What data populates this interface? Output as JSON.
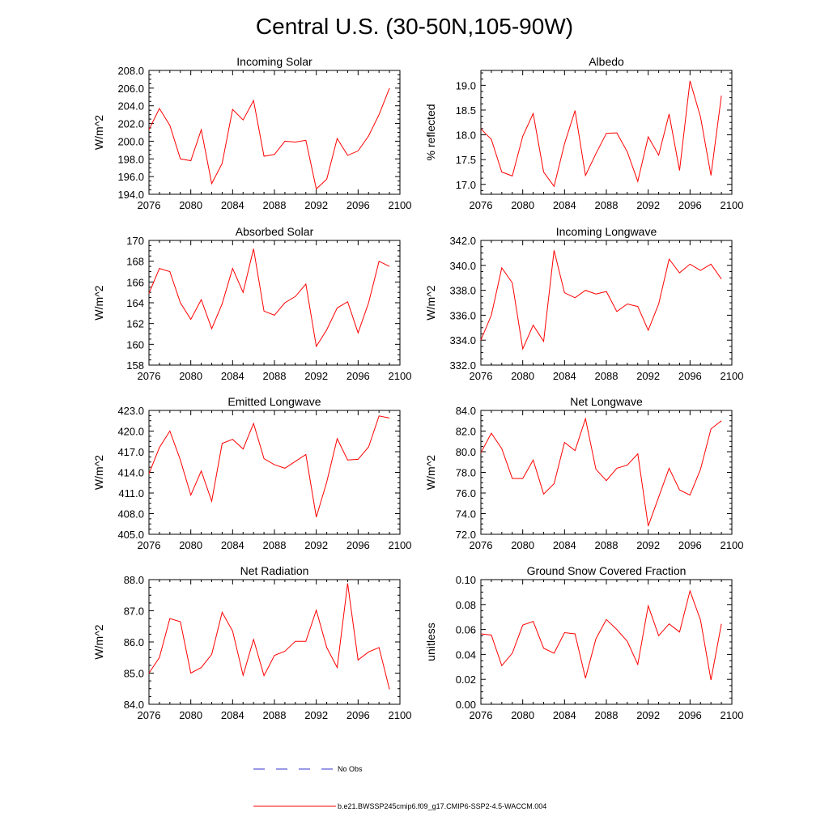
{
  "figure_title": "Central U.S. (30-50N,105-90W)",
  "legend": {
    "obs_label": "No Obs",
    "model_label": "b.e21.BWSSP245cmip6.f09_g17.CMIP6-SSP2-4.5-WACCM.004",
    "obs_color": "#3333cc",
    "model_color": "#ff0000"
  },
  "chart_data": [
    {
      "type": "line",
      "title": "Incoming Solar",
      "ylabel": "W/m^2",
      "xlabel": "",
      "xlim": [
        2076,
        2100
      ],
      "ylim": [
        194,
        208
      ],
      "x_ticks": [
        "2076",
        "2080",
        "2084",
        "2088",
        "2092",
        "2096",
        "2100"
      ],
      "y_ticks": [
        "194.0",
        "196.0",
        "198.0",
        "200.0",
        "202.0",
        "204.0",
        "206.0",
        "208.0"
      ],
      "series": [
        {
          "name": "b.e21.BWSSP245cmip6.f09_g17.CMIP6-SSP2-4.5-WACCM.004",
          "x": [
            2076,
            2077,
            2078,
            2079,
            2080,
            2081,
            2082,
            2083,
            2084,
            2085,
            2086,
            2087,
            2088,
            2089,
            2090,
            2091,
            2092,
            2093,
            2094,
            2095,
            2096,
            2097,
            2098,
            2099
          ],
          "values": [
            201.3,
            203.7,
            201.8,
            198.0,
            197.8,
            201.3,
            195.2,
            197.5,
            203.6,
            202.4,
            204.6,
            198.3,
            198.5,
            200.0,
            199.9,
            200.1,
            194.6,
            195.7,
            200.3,
            198.4,
            198.9,
            200.6,
            203.0,
            206.0
          ]
        }
      ]
    },
    {
      "type": "line",
      "title": "Albedo",
      "ylabel": "% reflected",
      "xlabel": "",
      "xlim": [
        2076,
        2100
      ],
      "ylim": [
        16.8,
        19.3
      ],
      "x_ticks": [
        "2076",
        "2080",
        "2084",
        "2088",
        "2092",
        "2096",
        "2100"
      ],
      "y_ticks": [
        "17.0",
        "17.5",
        "18.0",
        "18.5",
        "19.0"
      ],
      "series": [
        {
          "name": "b.e21.BWSSP245cmip6.f09_g17.CMIP6-SSP2-4.5-WACCM.004",
          "x": [
            2076,
            2077,
            2078,
            2079,
            2080,
            2081,
            2082,
            2083,
            2084,
            2085,
            2086,
            2087,
            2088,
            2089,
            2090,
            2091,
            2092,
            2093,
            2094,
            2095,
            2096,
            2097,
            2098,
            2099
          ],
          "values": [
            18.12,
            17.91,
            17.25,
            17.17,
            17.97,
            18.43,
            17.25,
            16.96,
            17.82,
            18.49,
            17.18,
            17.62,
            18.03,
            18.04,
            17.66,
            17.06,
            17.96,
            17.59,
            18.42,
            17.28,
            19.09,
            18.36,
            17.18,
            18.79
          ]
        }
      ]
    },
    {
      "type": "line",
      "title": "Absorbed Solar",
      "ylabel": "W/m^2",
      "xlabel": "",
      "xlim": [
        2076,
        2100
      ],
      "ylim": [
        158,
        170
      ],
      "x_ticks": [
        "2076",
        "2080",
        "2084",
        "2088",
        "2092",
        "2096",
        "2100"
      ],
      "y_ticks": [
        "158",
        "160",
        "162",
        "164",
        "166",
        "168",
        "170"
      ],
      "series": [
        {
          "name": "b.e21.BWSSP245cmip6.f09_g17.CMIP6-SSP2-4.5-WACCM.004",
          "x": [
            2076,
            2077,
            2078,
            2079,
            2080,
            2081,
            2082,
            2083,
            2084,
            2085,
            2086,
            2087,
            2088,
            2089,
            2090,
            2091,
            2092,
            2093,
            2094,
            2095,
            2096,
            2097,
            2098,
            2099
          ],
          "values": [
            164.9,
            167.3,
            167.0,
            164.0,
            162.4,
            164.3,
            161.5,
            163.9,
            167.3,
            165.0,
            169.2,
            163.2,
            162.8,
            164.0,
            164.6,
            165.8,
            159.8,
            161.4,
            163.5,
            164.1,
            161.1,
            164.0,
            168.0,
            167.5
          ]
        }
      ]
    },
    {
      "type": "line",
      "title": "Incoming Longwave",
      "ylabel": "W/m^2",
      "xlabel": "",
      "xlim": [
        2076,
        2100
      ],
      "ylim": [
        332,
        342
      ],
      "x_ticks": [
        "2076",
        "2080",
        "2084",
        "2088",
        "2092",
        "2096",
        "2100"
      ],
      "y_ticks": [
        "332.0",
        "334.0",
        "336.0",
        "338.0",
        "340.0",
        "342.0"
      ],
      "series": [
        {
          "name": "b.e21.BWSSP245cmip6.f09_g17.CMIP6-SSP2-4.5-WACCM.004",
          "x": [
            2076,
            2077,
            2078,
            2079,
            2080,
            2081,
            2082,
            2083,
            2084,
            2085,
            2086,
            2087,
            2088,
            2089,
            2090,
            2091,
            2092,
            2093,
            2094,
            2095,
            2096,
            2097,
            2098,
            2099
          ],
          "values": [
            334.0,
            336.0,
            339.8,
            338.6,
            333.3,
            335.2,
            333.9,
            341.2,
            337.8,
            337.4,
            338.0,
            337.7,
            337.9,
            336.3,
            336.9,
            336.7,
            334.8,
            336.9,
            340.5,
            339.4,
            340.1,
            339.6,
            340.1,
            338.9
          ]
        }
      ]
    },
    {
      "type": "line",
      "title": "Emitted Longwave",
      "ylabel": "W/m^2",
      "xlabel": "",
      "xlim": [
        2076,
        2100
      ],
      "ylim": [
        405,
        423
      ],
      "x_ticks": [
        "2076",
        "2080",
        "2084",
        "2088",
        "2092",
        "2096",
        "2100"
      ],
      "y_ticks": [
        "405.0",
        "408.0",
        "411.0",
        "414.0",
        "417.0",
        "420.0",
        "423.0"
      ],
      "series": [
        {
          "name": "b.e21.BWSSP245cmip6.f09_g17.CMIP6-SSP2-4.5-WACCM.004",
          "x": [
            2076,
            2077,
            2078,
            2079,
            2080,
            2081,
            2082,
            2083,
            2084,
            2085,
            2086,
            2087,
            2088,
            2089,
            2090,
            2091,
            2092,
            2093,
            2094,
            2095,
            2096,
            2097,
            2098,
            2099
          ],
          "values": [
            413.8,
            417.6,
            420.0,
            415.8,
            410.7,
            414.2,
            409.8,
            418.2,
            418.8,
            417.4,
            421.1,
            416.0,
            415.1,
            414.6,
            415.6,
            416.6,
            407.5,
            412.6,
            418.9,
            415.8,
            415.9,
            417.7,
            422.2,
            421.9
          ]
        }
      ]
    },
    {
      "type": "line",
      "title": "Net Longwave",
      "ylabel": "W/m^2",
      "xlabel": "",
      "xlim": [
        2076,
        2100
      ],
      "ylim": [
        72,
        84
      ],
      "x_ticks": [
        "2076",
        "2080",
        "2084",
        "2088",
        "2092",
        "2096",
        "2100"
      ],
      "y_ticks": [
        "72.0",
        "74.0",
        "76.0",
        "78.0",
        "80.0",
        "82.0",
        "84.0"
      ],
      "series": [
        {
          "name": "b.e21.BWSSP245cmip6.f09_g17.CMIP6-SSP2-4.5-WACCM.004",
          "x": [
            2076,
            2077,
            2078,
            2079,
            2080,
            2081,
            2082,
            2083,
            2084,
            2085,
            2086,
            2087,
            2088,
            2089,
            2090,
            2091,
            2092,
            2093,
            2094,
            2095,
            2096,
            2097,
            2098,
            2099
          ],
          "values": [
            79.9,
            81.8,
            80.3,
            77.4,
            77.4,
            79.2,
            75.9,
            76.9,
            80.9,
            80.1,
            83.2,
            78.3,
            77.2,
            78.4,
            78.7,
            79.8,
            72.8,
            75.6,
            78.4,
            76.3,
            75.8,
            78.3,
            82.2,
            83.0
          ]
        }
      ]
    },
    {
      "type": "line",
      "title": "Net Radiation",
      "ylabel": "W/m^2",
      "xlabel": "",
      "xlim": [
        2076,
        2100
      ],
      "ylim": [
        84,
        88
      ],
      "x_ticks": [
        "2076",
        "2080",
        "2084",
        "2088",
        "2092",
        "2096",
        "2100"
      ],
      "y_ticks": [
        "84.0",
        "85.0",
        "86.0",
        "87.0",
        "88.0"
      ],
      "series": [
        {
          "name": "b.e21.BWSSP245cmip6.f09_g17.CMIP6-SSP2-4.5-WACCM.004",
          "x": [
            2076,
            2077,
            2078,
            2079,
            2080,
            2081,
            2082,
            2083,
            2084,
            2085,
            2086,
            2087,
            2088,
            2089,
            2090,
            2091,
            2092,
            2093,
            2094,
            2095,
            2096,
            2097,
            2098,
            2099
          ],
          "values": [
            85.0,
            85.5,
            86.75,
            86.65,
            85.0,
            85.18,
            85.6,
            86.95,
            86.35,
            84.93,
            86.08,
            84.92,
            85.57,
            85.7,
            86.02,
            86.02,
            87.02,
            85.82,
            85.18,
            87.88,
            85.42,
            85.68,
            85.82,
            84.48
          ]
        }
      ]
    },
    {
      "type": "line",
      "title": "Ground Snow Covered Fraction",
      "ylabel": "unitless",
      "xlabel": "",
      "xlim": [
        2076,
        2100
      ],
      "ylim": [
        0.0,
        0.1
      ],
      "x_ticks": [
        "2076",
        "2080",
        "2084",
        "2088",
        "2092",
        "2096",
        "2100"
      ],
      "y_ticks": [
        "0.00",
        "0.02",
        "0.04",
        "0.06",
        "0.08",
        "0.10"
      ],
      "series": [
        {
          "name": "b.e21.BWSSP245cmip6.f09_g17.CMIP6-SSP2-4.5-WACCM.004",
          "x": [
            2076,
            2077,
            2078,
            2079,
            2080,
            2081,
            2082,
            2083,
            2084,
            2085,
            2086,
            2087,
            2088,
            2089,
            2090,
            2091,
            2092,
            2093,
            2094,
            2095,
            2096,
            2097,
            2098,
            2099
          ],
          "values": [
            0.0565,
            0.0555,
            0.031,
            0.041,
            0.0635,
            0.0665,
            0.045,
            0.041,
            0.0575,
            0.0565,
            0.021,
            0.0525,
            0.068,
            0.06,
            0.0505,
            0.032,
            0.079,
            0.055,
            0.0645,
            0.058,
            0.091,
            0.0675,
            0.0195,
            0.0645
          ]
        }
      ]
    }
  ]
}
